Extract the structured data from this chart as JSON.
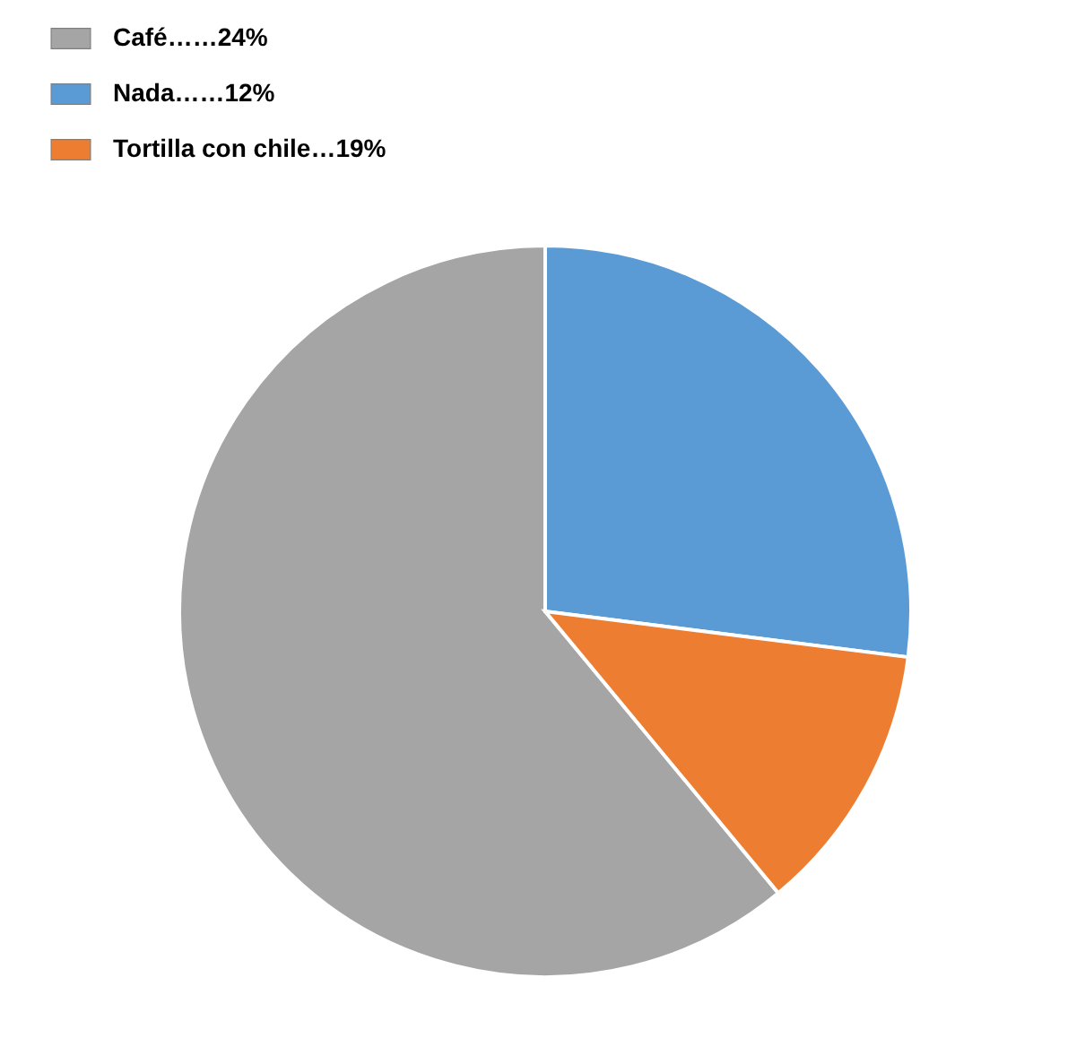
{
  "chart_data": {
    "type": "pie",
    "categories": [
      "Café……24%",
      "Nada……12%",
      "Tortilla con chile…19%"
    ],
    "values": [
      61,
      27,
      12
    ],
    "colors": [
      "#a5a5a5",
      "#5b9bd5",
      "#ed7d31"
    ],
    "legend": "top left"
  }
}
